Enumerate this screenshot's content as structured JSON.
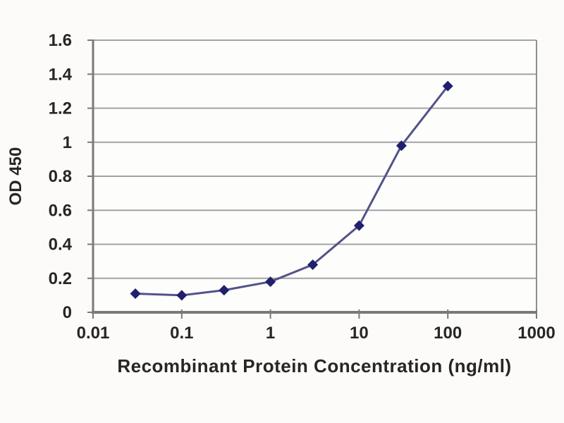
{
  "chart_data": {
    "type": "line",
    "title": "",
    "xlabel": "Recombinant Protein Concentration (ng/ml)",
    "ylabel": "OD 450",
    "x_scale": "log",
    "y_scale": "linear",
    "xlim": [
      0.01,
      1000
    ],
    "ylim": [
      0,
      1.6
    ],
    "grid": "horizontal",
    "legend_position": "none",
    "x_ticks": [
      {
        "value": 0.01,
        "label": "0.01"
      },
      {
        "value": 0.1,
        "label": "0.1"
      },
      {
        "value": 1,
        "label": "1"
      },
      {
        "value": 10,
        "label": "10"
      },
      {
        "value": 100,
        "label": "100"
      },
      {
        "value": 1000,
        "label": "1000"
      }
    ],
    "y_ticks": [
      {
        "value": 0,
        "label": "0"
      },
      {
        "value": 0.2,
        "label": "0.2"
      },
      {
        "value": 0.4,
        "label": "0.4"
      },
      {
        "value": 0.6,
        "label": "0.6"
      },
      {
        "value": 0.8,
        "label": "0.8"
      },
      {
        "value": 1,
        "label": "1"
      },
      {
        "value": 1.2,
        "label": "1.2"
      },
      {
        "value": 1.4,
        "label": "1.4"
      },
      {
        "value": 1.6,
        "label": "1.6"
      }
    ],
    "series": [
      {
        "name": "OD 450",
        "marker": "diamond",
        "x": [
          0.03,
          0.1,
          0.3,
          1,
          3,
          10,
          30,
          100
        ],
        "y": [
          0.11,
          0.1,
          0.13,
          0.18,
          0.28,
          0.51,
          0.98,
          1.33
        ],
        "line_color": "#52528a",
        "marker_color": "#20206d"
      }
    ]
  },
  "colors": {
    "background": "#fcfbf9",
    "plot_background": "#fdfdfc",
    "gridline": "#a3a3a3",
    "axis": "#7a7a7a",
    "plot_border": "#8f8f8f",
    "text": "#262626"
  }
}
